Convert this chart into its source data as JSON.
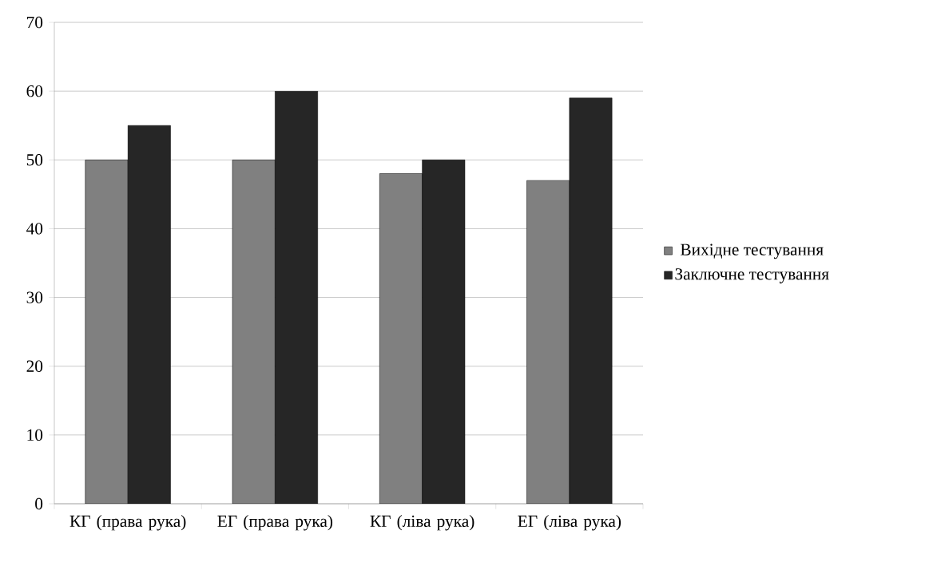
{
  "chart_data": {
    "type": "bar",
    "categories": [
      "КГ (права рука)",
      "ЕГ (права рука)",
      "КГ (ліва рука)",
      "ЕГ (ліва рука)"
    ],
    "series": [
      {
        "name": "Вихідне тестування",
        "color": "#808080",
        "values": [
          50,
          50,
          48,
          47
        ]
      },
      {
        "name": "Заключне тестування",
        "color": "#262626",
        "values": [
          55,
          60,
          50,
          59
        ]
      }
    ],
    "ylim": [
      0,
      70
    ],
    "yticks": [
      0,
      10,
      20,
      30,
      40,
      50,
      60,
      70
    ],
    "grid": "y",
    "legend": "right"
  }
}
